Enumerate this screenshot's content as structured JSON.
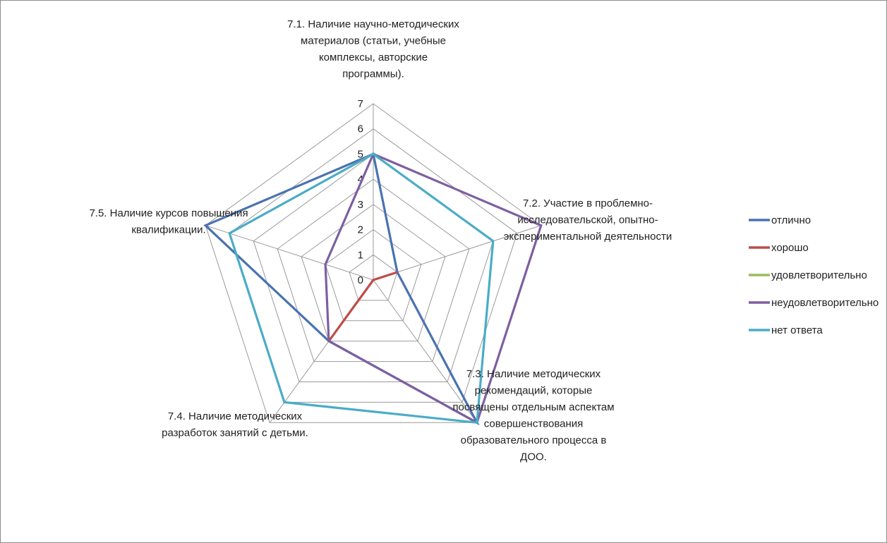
{
  "chart_data": {
    "type": "radar",
    "axes": [
      "7.1. Наличие научно-методических материалов (статьи, учебные комплексы, авторские программы).",
      "7.2. Участие в проблемно-исследовательской, опытно-экспериментальной деятельности",
      "7.3. Наличие методических рекомендаций, которые посвящены отдельным аспектам совершенствования образовательного процесса в ДОО.",
      "7.4. Наличие методических разработок занятий с детьми.",
      "7.5. Наличие курсов повышения квалификации."
    ],
    "axis_label_lines": [
      [
        "7.1. Наличие научно-методических",
        "материалов (статьи, учебные",
        "комплексы, авторские",
        "программы)."
      ],
      [
        "7.2. Участие в проблемно-",
        "исследовательской, опытно-",
        "экспериментальной деятельности"
      ],
      [
        "7.3. Наличие методических",
        "рекомендаций, которые",
        "посвящены отдельным аспектам",
        "совершенствования",
        "образовательного процесса в",
        "ДОО."
      ],
      [
        "7.4. Наличие методических",
        "разработок занятий с детьми."
      ],
      [
        "7.5. Наличие курсов повышения",
        "квалификации."
      ]
    ],
    "rmin": 0,
    "rmax": 7,
    "ticks": [
      0,
      1,
      2,
      3,
      4,
      5,
      6,
      7
    ],
    "gridlines": true,
    "legend_position": "right",
    "series": [
      {
        "name": "отлично",
        "color": "#4a72b0",
        "values": [
          5,
          1,
          7,
          3,
          7
        ]
      },
      {
        "name": "хорошо",
        "color": "#bf4b48",
        "values": [
          0,
          1,
          0,
          3,
          0
        ]
      },
      {
        "name": "удовлетворительно",
        "color": "#9bbb59",
        "values": [
          0,
          0,
          0,
          0,
          0
        ]
      },
      {
        "name": "неудовлетворительно",
        "color": "#7d5fa0",
        "values": [
          5,
          7,
          7,
          3,
          2
        ]
      },
      {
        "name": "нет ответа",
        "color": "#4bacc6",
        "values": [
          5,
          5,
          7,
          6,
          6
        ]
      }
    ]
  }
}
